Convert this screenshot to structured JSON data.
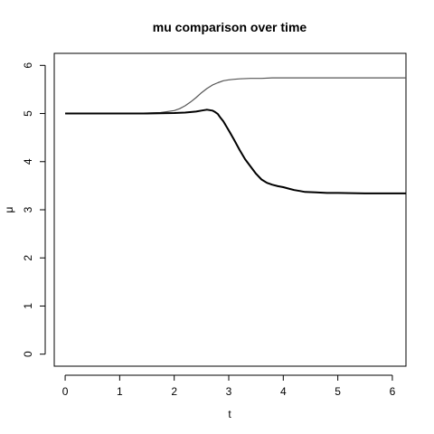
{
  "chart_data": {
    "type": "line",
    "title": "mu comparison over time",
    "xlabel": "t",
    "ylabel": "μ",
    "xlim": [
      -0.2,
      6.25
    ],
    "ylim": [
      -0.25,
      6.25
    ],
    "x_ticks": [
      0,
      1,
      2,
      3,
      4,
      5,
      6
    ],
    "y_ticks": [
      0,
      1,
      2,
      3,
      4,
      5,
      6
    ],
    "grid": false,
    "series": [
      {
        "color": "#555555",
        "x": [
          0,
          0.5,
          1.0,
          1.25,
          1.5,
          1.75,
          2.0,
          2.1,
          2.2,
          2.3,
          2.4,
          2.5,
          2.6,
          2.7,
          2.8,
          2.9,
          3.0,
          3.1,
          3.2,
          3.4,
          3.6,
          3.8,
          4.0,
          4.5,
          5.0,
          5.5,
          6.0,
          6.25
        ],
        "y": [
          5.0,
          5.0,
          5.0,
          5.0,
          5.01,
          5.02,
          5.06,
          5.1,
          5.16,
          5.24,
          5.33,
          5.43,
          5.52,
          5.59,
          5.64,
          5.68,
          5.7,
          5.71,
          5.72,
          5.73,
          5.73,
          5.74,
          5.74,
          5.74,
          5.74,
          5.74,
          5.74,
          5.74
        ]
      },
      {
        "color": "#000000",
        "x": [
          0,
          0.5,
          1.0,
          1.5,
          2.0,
          2.2,
          2.4,
          2.5,
          2.6,
          2.7,
          2.75,
          2.8,
          2.85,
          2.9,
          3.0,
          3.1,
          3.2,
          3.3,
          3.4,
          3.5,
          3.6,
          3.7,
          3.8,
          3.9,
          4.0,
          4.1,
          4.2,
          4.3,
          4.4,
          4.6,
          4.8,
          5.0,
          5.5,
          6.0,
          6.25
        ],
        "y": [
          5.0,
          5.0,
          5.0,
          5.0,
          5.01,
          5.02,
          5.04,
          5.06,
          5.08,
          5.06,
          5.03,
          4.99,
          4.91,
          4.84,
          4.65,
          4.45,
          4.24,
          4.05,
          3.9,
          3.75,
          3.63,
          3.56,
          3.52,
          3.49,
          3.47,
          3.44,
          3.41,
          3.39,
          3.37,
          3.36,
          3.35,
          3.35,
          3.34,
          3.34,
          3.34
        ]
      }
    ]
  }
}
